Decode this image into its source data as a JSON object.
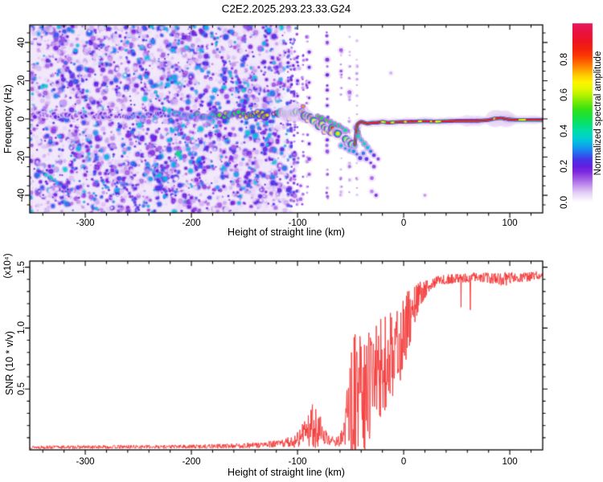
{
  "title": "C2E2.2025.293.23.33.G24",
  "background": "#ffffff",
  "chart_data": [
    {
      "type": "heatmap",
      "name": "spectrogram",
      "xlabel": "Height of straight line (km)",
      "ylabel": "Frequency (Hz)",
      "xlim": [
        -352.3,
        131
      ],
      "ylim": [
        -49.2,
        49.2
      ],
      "xticks": [
        -300,
        -200,
        -100,
        0,
        100
      ],
      "xminor_step": 20,
      "yticks": [
        40,
        20,
        0,
        -20,
        -40
      ],
      "yminor_step": 5,
      "colorbar": {
        "label": "Normalized spectral amplitude",
        "tick_labels": [
          "0.0",
          "0.2",
          "0.4",
          "0.6",
          "0.8"
        ],
        "tick_values": [
          0,
          0.2,
          0.4,
          0.6,
          0.8
        ],
        "range": [
          0,
          1
        ],
        "stops": [
          [
            0.0,
            "#ffffff"
          ],
          [
            0.02,
            "#f6effc"
          ],
          [
            0.05,
            "#e7d4f7"
          ],
          [
            0.09,
            "#c79bee"
          ],
          [
            0.13,
            "#a35ee6"
          ],
          [
            0.17,
            "#7e2ade"
          ],
          [
            0.2,
            "#641fe0"
          ],
          [
            0.24,
            "#4436e8"
          ],
          [
            0.27,
            "#2a62ee"
          ],
          [
            0.3,
            "#1590ee"
          ],
          [
            0.33,
            "#07b4e4"
          ],
          [
            0.36,
            "#00d0d0"
          ],
          [
            0.4,
            "#00dda8"
          ],
          [
            0.44,
            "#06e070"
          ],
          [
            0.48,
            "#18e03e"
          ],
          [
            0.52,
            "#35e215"
          ],
          [
            0.56,
            "#74ea08"
          ],
          [
            0.6,
            "#b5f200"
          ],
          [
            0.64,
            "#e9f800"
          ],
          [
            0.67,
            "#fff300"
          ],
          [
            0.7,
            "#ffd600"
          ],
          [
            0.73,
            "#ffae00"
          ],
          [
            0.76,
            "#ff8500"
          ],
          [
            0.79,
            "#ff5c00"
          ],
          [
            0.82,
            "#fb3804"
          ],
          [
            0.86,
            "#f3200e"
          ],
          [
            0.9,
            "#ee1420"
          ],
          [
            0.95,
            "#e91240"
          ],
          [
            1.0,
            "#e61a5e"
          ]
        ]
      },
      "noise": {
        "x_start": -352.3,
        "x_full_end": -122,
        "x_fade_end": -97,
        "blob_count": 3600,
        "seed": 7
      },
      "residual_columns": [
        [
          -109,
          0.9
        ],
        [
          -106,
          0.8
        ],
        [
          -103,
          0.7
        ],
        [
          -100,
          0.6
        ],
        [
          -95,
          0.4
        ],
        [
          -91,
          0.45
        ],
        [
          -72,
          0.5
        ],
        [
          -59,
          0.3
        ],
        [
          -51,
          0.25
        ],
        [
          -44,
          0.2
        ]
      ],
      "diagonal_streaks": [
        [
          -262,
          42,
          -212,
          -8,
          0.3
        ],
        [
          -300,
          -14,
          -272,
          -44,
          0.26
        ],
        [
          -345,
          -27,
          -312,
          -38,
          0.3
        ],
        [
          -182,
          46,
          -150,
          6,
          0.3
        ],
        [
          -157,
          22,
          -129,
          -14,
          0.28
        ],
        [
          -243,
          -22,
          -215,
          -46,
          0.26
        ],
        [
          -133,
          46,
          -113,
          16,
          0.26
        ],
        [
          -223,
          12,
          -190,
          -34,
          0.24
        ],
        [
          -320,
          30,
          -290,
          0,
          0.22
        ],
        [
          -270,
          -30,
          -248,
          -48,
          0.22
        ]
      ],
      "signal_trace": [
        [
          -352,
          2,
          0.15
        ],
        [
          -320,
          2,
          0.17
        ],
        [
          -290,
          2,
          0.19
        ],
        [
          -260,
          1.5,
          0.22
        ],
        [
          -240,
          2,
          0.26
        ],
        [
          -220,
          2.5,
          0.3
        ],
        [
          -200,
          2,
          0.34
        ],
        [
          -185,
          1.5,
          0.38
        ],
        [
          -170,
          2,
          0.44
        ],
        [
          -158,
          2.5,
          0.5
        ],
        [
          -146,
          2,
          0.56
        ],
        [
          -136,
          2.5,
          0.6
        ],
        [
          -126,
          2,
          0.65
        ],
        [
          -118,
          2.5,
          0.68
        ],
        [
          -110,
          3,
          0.73
        ],
        [
          -104,
          3.5,
          0.77
        ],
        [
          -99,
          4,
          0.8
        ],
        [
          -95,
          3,
          0.82
        ],
        [
          -91,
          1.5,
          0.8
        ],
        [
          -87,
          0,
          0.78
        ],
        [
          -83,
          -1.5,
          0.74
        ],
        [
          -80,
          -3,
          0.72
        ],
        [
          -77,
          -3,
          0.78
        ],
        [
          -73,
          -5,
          0.82
        ],
        [
          -70,
          -6,
          0.8
        ],
        [
          -67,
          -5.5,
          0.76
        ],
        [
          -64,
          -7,
          0.74
        ],
        [
          -61,
          -8,
          0.78
        ],
        [
          -58,
          -9.5,
          0.72
        ],
        [
          -55,
          -10.5,
          0.68
        ],
        [
          -52,
          -12,
          0.64
        ],
        [
          -49,
          -13,
          0.56
        ],
        [
          -46,
          -13.5,
          0.46
        ],
        [
          -45,
          -8,
          0.5
        ],
        [
          -44,
          -3,
          0.62
        ],
        [
          -42,
          -2,
          0.74
        ],
        [
          -40,
          -1.5,
          0.84
        ],
        [
          -37,
          -2,
          0.9
        ],
        [
          -34,
          -2.5,
          0.92
        ],
        [
          -30,
          -2,
          0.94
        ],
        [
          -25,
          -2,
          0.92
        ],
        [
          -20,
          -1.5,
          0.95
        ],
        [
          -15,
          -2,
          0.96
        ],
        [
          -10,
          -1.8,
          0.95
        ],
        [
          -5,
          -1.6,
          0.96
        ],
        [
          0,
          -1.5,
          0.96
        ],
        [
          10,
          -1.4,
          0.97
        ],
        [
          20,
          -1.2,
          0.95
        ],
        [
          30,
          -1.4,
          0.96
        ],
        [
          40,
          -1.2,
          0.97
        ],
        [
          50,
          -1,
          0.95
        ],
        [
          60,
          -1,
          0.96
        ],
        [
          70,
          -1,
          0.97
        ],
        [
          80,
          -0.6,
          0.96
        ],
        [
          86,
          0.2,
          0.95
        ],
        [
          92,
          0.4,
          0.96
        ],
        [
          98,
          -0.2,
          0.97
        ],
        [
          105,
          -0.5,
          0.96
        ],
        [
          115,
          -0.5,
          0.97
        ],
        [
          123,
          -0.5,
          0.96
        ],
        [
          131,
          -0.5,
          0.96
        ]
      ],
      "scatter_blobs": [
        [
          -81,
          1.5,
          0.5
        ],
        [
          -77,
          0.5,
          0.45
        ],
        [
          -73,
          -0.5,
          0.5
        ],
        [
          -69,
          -1.5,
          0.46
        ],
        [
          -65,
          -2.5,
          0.42
        ],
        [
          -61,
          -3.5,
          0.46
        ],
        [
          -58,
          -4.5,
          0.4
        ],
        [
          -55,
          -6,
          0.42
        ],
        [
          -59,
          -14,
          0.34
        ],
        [
          -55,
          -15.5,
          0.3
        ],
        [
          -51,
          -16.5,
          0.34
        ],
        [
          -47,
          -17,
          0.3
        ],
        [
          -44,
          -18.5,
          0.27
        ],
        [
          -41,
          -20.5,
          0.24
        ],
        [
          -38,
          -18,
          0.28
        ],
        [
          -35,
          -21,
          0.22
        ],
        [
          -31,
          -23,
          0.2
        ],
        [
          -28,
          -25,
          0.16
        ],
        [
          -43,
          -9,
          0.4
        ],
        [
          -40,
          -11,
          0.38
        ],
        [
          -37,
          -13,
          0.4
        ],
        [
          -34,
          -15,
          0.34
        ],
        [
          -31,
          -17,
          0.28
        ],
        [
          -28,
          -19,
          0.22
        ],
        [
          -26,
          -40,
          0.18
        ],
        [
          -24,
          -21,
          0.16
        ],
        [
          -89,
          35,
          0.2
        ],
        [
          -89,
          27,
          0.22
        ],
        [
          -89,
          19,
          0.18
        ],
        [
          -89,
          11,
          0.2
        ],
        [
          -89,
          -13,
          0.2
        ],
        [
          -89,
          -21,
          0.16
        ],
        [
          -89,
          -29,
          0.14
        ],
        [
          -72,
          31,
          0.18
        ],
        [
          -72,
          23,
          0.2
        ],
        [
          -72,
          15,
          0.18
        ],
        [
          -72,
          7,
          0.22
        ],
        [
          -72,
          -11,
          0.2
        ],
        [
          -72,
          -17,
          0.15
        ],
        [
          -72,
          40,
          0.16
        ],
        [
          -59,
          36,
          0.14
        ],
        [
          -59,
          25,
          0.15
        ],
        [
          -51,
          14,
          0.13
        ],
        [
          -51,
          -25,
          0.12
        ],
        [
          -30,
          -31,
          0.13
        ],
        [
          -30,
          -38,
          0.11
        ],
        [
          20,
          -40,
          0.1
        ],
        [
          -12,
          24,
          0.08
        ],
        [
          -97,
          -35,
          0.15
        ],
        [
          -97,
          -42,
          0.13
        ],
        [
          -103,
          -30,
          0.18
        ],
        [
          -100,
          20,
          0.2
        ],
        [
          -100,
          12,
          0.18
        ],
        [
          -104,
          28,
          0.2
        ]
      ],
      "halo_bulges": [
        [
          -118,
          -92,
          1.5
        ],
        [
          55,
          75,
          1.3
        ],
        [
          80,
          104,
          1.9
        ]
      ]
    },
    {
      "type": "line",
      "name": "snr",
      "xlabel": "Height of straight line (km)",
      "ylabel": "SNR (10 * v/v)",
      "scale_label": "(x10⁴)",
      "xlim": [
        -352.3,
        131
      ],
      "ylim": [
        0,
        1.55
      ],
      "xticks": [
        -300,
        -200,
        -100,
        0,
        100
      ],
      "xminor_step": 20,
      "yticks": [
        0.5,
        1.0,
        1.5
      ],
      "ytick_labels": [
        "0.5",
        "1.0",
        "1.5"
      ],
      "yminor_step": 0.1,
      "line_color": "#f43535",
      "seed": 13,
      "step_km": 0.35,
      "series": [
        {
          "name": "SNR",
          "anchors": [
            [
              -352,
              0.022,
              0.014
            ],
            [
              -300,
              0.023,
              0.014
            ],
            [
              -250,
              0.025,
              0.015
            ],
            [
              -200,
              0.027,
              0.016
            ],
            [
              -165,
              0.032,
              0.02
            ],
            [
              -140,
              0.038,
              0.024
            ],
            [
              -120,
              0.048,
              0.03
            ],
            [
              -108,
              0.06,
              0.045
            ],
            [
              -100,
              0.09,
              0.07
            ],
            [
              -94,
              0.12,
              0.09
            ],
            [
              -88,
              0.16,
              0.13
            ],
            [
              -83,
              0.21,
              0.22
            ],
            [
              -80,
              0.17,
              0.14
            ],
            [
              -76,
              0.12,
              0.08
            ],
            [
              -71,
              0.085,
              0.05
            ],
            [
              -66,
              0.07,
              0.04
            ],
            [
              -61,
              0.075,
              0.045
            ],
            [
              -57,
              0.1,
              0.09
            ],
            [
              -53,
              0.2,
              0.28
            ],
            [
              -49,
              0.38,
              0.5
            ],
            [
              -45,
              0.5,
              0.55
            ],
            [
              -41,
              0.45,
              0.48
            ],
            [
              -37,
              0.4,
              0.44
            ],
            [
              -33,
              0.48,
              0.44
            ],
            [
              -29,
              0.54,
              0.42
            ],
            [
              -25,
              0.6,
              0.4
            ],
            [
              -21,
              0.64,
              0.38
            ],
            [
              -17,
              0.68,
              0.36
            ],
            [
              -13,
              0.73,
              0.34
            ],
            [
              -9,
              0.78,
              0.32
            ],
            [
              -5,
              0.84,
              0.32
            ],
            [
              -1,
              0.92,
              0.3
            ],
            [
              3,
              1.0,
              0.26
            ],
            [
              7,
              1.08,
              0.2
            ],
            [
              11,
              1.17,
              0.15
            ],
            [
              15,
              1.25,
              0.11
            ],
            [
              19,
              1.31,
              0.08
            ],
            [
              24,
              1.35,
              0.055
            ],
            [
              30,
              1.38,
              0.045
            ],
            [
              40,
              1.4,
              0.04
            ],
            [
              55,
              1.41,
              0.04
            ],
            [
              70,
              1.42,
              0.038
            ],
            [
              85,
              1.41,
              0.045
            ],
            [
              95,
              1.4,
              0.06
            ],
            [
              105,
              1.42,
              0.045
            ],
            [
              115,
              1.42,
              0.04
            ],
            [
              125,
              1.43,
              0.035
            ],
            [
              131,
              1.42,
              0.03
            ]
          ]
        }
      ]
    }
  ]
}
